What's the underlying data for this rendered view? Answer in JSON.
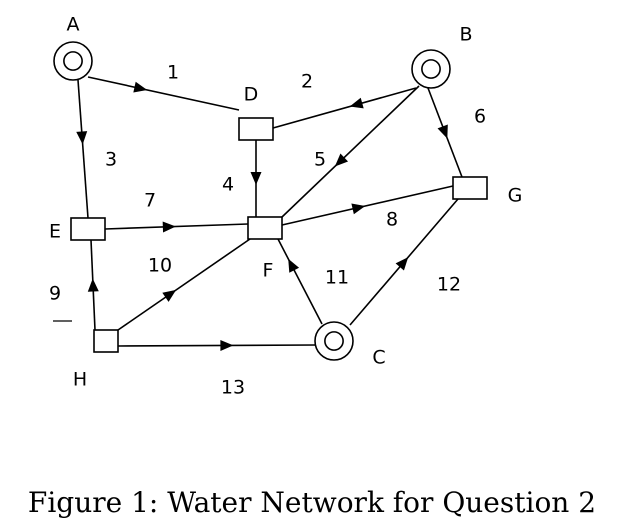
{
  "caption": "Figure 1: Water Network for Question 2",
  "nodes": [
    {
      "id": "A",
      "label": "A",
      "kind": "source"
    },
    {
      "id": "B",
      "label": "B",
      "kind": "source"
    },
    {
      "id": "C",
      "label": "C",
      "kind": "source"
    },
    {
      "id": "D",
      "label": "D",
      "kind": "junction"
    },
    {
      "id": "E",
      "label": "E",
      "kind": "junction"
    },
    {
      "id": "F",
      "label": "F",
      "kind": "junction"
    },
    {
      "id": "G",
      "label": "G",
      "kind": "junction"
    },
    {
      "id": "H",
      "label": "H",
      "kind": "junction"
    }
  ],
  "edges": [
    {
      "label": "1",
      "from": "A",
      "to": "D"
    },
    {
      "label": "2",
      "from": "B",
      "to": "D"
    },
    {
      "label": "3",
      "from": "A",
      "to": "E"
    },
    {
      "label": "4",
      "from": "D",
      "to": "F"
    },
    {
      "label": "5",
      "from": "B",
      "to": "F"
    },
    {
      "label": "6",
      "from": "B",
      "to": "G"
    },
    {
      "label": "7",
      "from": "E",
      "to": "F"
    },
    {
      "label": "8",
      "from": "F",
      "to": "G"
    },
    {
      "label": "9",
      "from": "H",
      "to": "E"
    },
    {
      "label": "10",
      "from": "H",
      "to": "F"
    },
    {
      "label": "11",
      "from": "C",
      "to": "F"
    },
    {
      "label": "12",
      "from": "C",
      "to": "G"
    },
    {
      "label": "13",
      "from": "C",
      "to": "H"
    }
  ]
}
